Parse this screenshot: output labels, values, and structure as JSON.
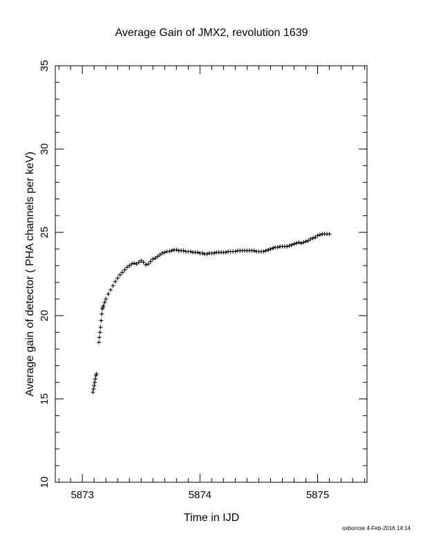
{
  "chart_data": {
    "type": "scatter",
    "title": "Average Gain of JMX2, revolution 1639",
    "xlabel": "Time in IJD",
    "ylabel": "Average gain of detector ( PHA channels per keV)",
    "xlim": [
      5872.77,
      5875.42
    ],
    "ylim": [
      10,
      35
    ],
    "xticks": [
      5873,
      5874,
      5875
    ],
    "yticks": [
      10,
      15,
      20,
      25,
      30,
      35
    ],
    "grid": false,
    "marker": "+",
    "series": [
      {
        "points": [
          [
            5873.09,
            15.4
          ],
          [
            5873.095,
            15.6
          ],
          [
            5873.1,
            15.8
          ],
          [
            5873.105,
            16.0
          ],
          [
            5873.11,
            16.2
          ],
          [
            5873.115,
            16.4
          ],
          [
            5873.12,
            16.5
          ],
          [
            5873.14,
            18.4
          ],
          [
            5873.145,
            18.7
          ],
          [
            5873.15,
            19.0
          ],
          [
            5873.155,
            19.3
          ],
          [
            5873.16,
            19.7
          ],
          [
            5873.165,
            20.1
          ],
          [
            5873.17,
            20.4
          ],
          [
            5873.175,
            20.5
          ],
          [
            5873.18,
            20.6
          ],
          [
            5873.19,
            20.8
          ],
          [
            5873.2,
            21.0
          ],
          [
            5873.22,
            21.3
          ],
          [
            5873.24,
            21.55
          ],
          [
            5873.26,
            21.8
          ],
          [
            5873.28,
            22.05
          ],
          [
            5873.3,
            22.25
          ],
          [
            5873.32,
            22.45
          ],
          [
            5873.34,
            22.6
          ],
          [
            5873.36,
            22.75
          ],
          [
            5873.38,
            22.9
          ],
          [
            5873.4,
            23.0
          ],
          [
            5873.42,
            23.1
          ],
          [
            5873.44,
            23.15
          ],
          [
            5873.46,
            23.1
          ],
          [
            5873.48,
            23.2
          ],
          [
            5873.5,
            23.3
          ],
          [
            5873.52,
            23.2
          ],
          [
            5873.54,
            23.05
          ],
          [
            5873.56,
            23.1
          ],
          [
            5873.58,
            23.25
          ],
          [
            5873.6,
            23.4
          ],
          [
            5873.62,
            23.45
          ],
          [
            5873.64,
            23.55
          ],
          [
            5873.66,
            23.65
          ],
          [
            5873.68,
            23.75
          ],
          [
            5873.7,
            23.8
          ],
          [
            5873.72,
            23.85
          ],
          [
            5873.74,
            23.85
          ],
          [
            5873.76,
            23.9
          ],
          [
            5873.78,
            23.95
          ],
          [
            5873.8,
            23.95
          ],
          [
            5873.82,
            23.9
          ],
          [
            5873.84,
            23.9
          ],
          [
            5873.86,
            23.9
          ],
          [
            5873.88,
            23.85
          ],
          [
            5873.9,
            23.85
          ],
          [
            5873.92,
            23.85
          ],
          [
            5873.94,
            23.8
          ],
          [
            5873.96,
            23.8
          ],
          [
            5873.98,
            23.8
          ],
          [
            5874.0,
            23.75
          ],
          [
            5874.02,
            23.75
          ],
          [
            5874.04,
            23.7
          ],
          [
            5874.06,
            23.7
          ],
          [
            5874.08,
            23.75
          ],
          [
            5874.1,
            23.75
          ],
          [
            5874.12,
            23.75
          ],
          [
            5874.14,
            23.8
          ],
          [
            5874.16,
            23.8
          ],
          [
            5874.18,
            23.8
          ],
          [
            5874.2,
            23.8
          ],
          [
            5874.22,
            23.8
          ],
          [
            5874.24,
            23.85
          ],
          [
            5874.26,
            23.85
          ],
          [
            5874.28,
            23.85
          ],
          [
            5874.3,
            23.85
          ],
          [
            5874.32,
            23.9
          ],
          [
            5874.34,
            23.9
          ],
          [
            5874.36,
            23.9
          ],
          [
            5874.38,
            23.9
          ],
          [
            5874.4,
            23.9
          ],
          [
            5874.42,
            23.9
          ],
          [
            5874.44,
            23.9
          ],
          [
            5874.46,
            23.9
          ],
          [
            5874.48,
            23.85
          ],
          [
            5874.5,
            23.85
          ],
          [
            5874.52,
            23.85
          ],
          [
            5874.54,
            23.85
          ],
          [
            5874.56,
            23.9
          ],
          [
            5874.58,
            23.95
          ],
          [
            5874.6,
            24.0
          ],
          [
            5874.62,
            24.05
          ],
          [
            5874.64,
            24.1
          ],
          [
            5874.66,
            24.1
          ],
          [
            5874.68,
            24.15
          ],
          [
            5874.7,
            24.15
          ],
          [
            5874.72,
            24.15
          ],
          [
            5874.74,
            24.15
          ],
          [
            5874.76,
            24.2
          ],
          [
            5874.78,
            24.25
          ],
          [
            5874.8,
            24.3
          ],
          [
            5874.82,
            24.35
          ],
          [
            5874.84,
            24.4
          ],
          [
            5874.86,
            24.35
          ],
          [
            5874.88,
            24.4
          ],
          [
            5874.9,
            24.45
          ],
          [
            5874.92,
            24.5
          ],
          [
            5874.94,
            24.6
          ],
          [
            5874.96,
            24.65
          ],
          [
            5874.98,
            24.7
          ],
          [
            5875.0,
            24.8
          ],
          [
            5875.02,
            24.85
          ],
          [
            5875.04,
            24.9
          ],
          [
            5875.06,
            24.9
          ],
          [
            5875.08,
            24.9
          ],
          [
            5875.1,
            24.9
          ]
        ]
      }
    ]
  },
  "footer": "oxborrow  4-Feb-2016 14:14"
}
